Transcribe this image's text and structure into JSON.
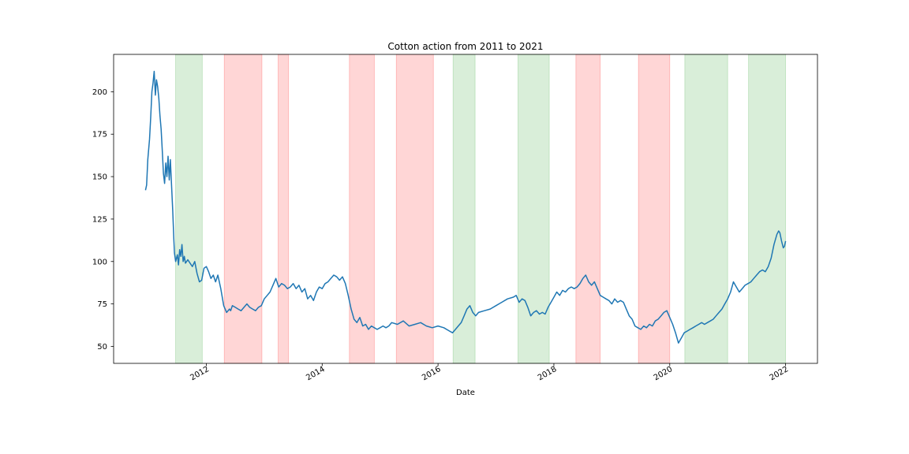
{
  "chart_data": {
    "type": "line",
    "title": "Cotton action from 2011 to 2021",
    "xlabel": "Date",
    "ylabel": "",
    "xlim": [
      2010.4,
      2022.55
    ],
    "ylim": [
      40,
      222
    ],
    "x_ticks": [
      {
        "value": 2012,
        "label": "2012"
      },
      {
        "value": 2014,
        "label": "2014"
      },
      {
        "value": 2016,
        "label": "2016"
      },
      {
        "value": 2018,
        "label": "2018"
      },
      {
        "value": 2020,
        "label": "2020"
      },
      {
        "value": 2022,
        "label": "2022"
      }
    ],
    "y_ticks": [
      {
        "value": 50,
        "label": "50"
      },
      {
        "value": 75,
        "label": "75"
      },
      {
        "value": 100,
        "label": "100"
      },
      {
        "value": 125,
        "label": "125"
      },
      {
        "value": 150,
        "label": "150"
      },
      {
        "value": 175,
        "label": "175"
      },
      {
        "value": 200,
        "label": "200"
      }
    ],
    "colors": {
      "line": "#1f77b4",
      "green_band": "#2ca02c",
      "red_band": "#ff0000"
    },
    "bands": [
      {
        "start": 2011.47,
        "end": 2011.93,
        "color": "green"
      },
      {
        "start": 2012.31,
        "end": 2012.96,
        "color": "red"
      },
      {
        "start": 2013.24,
        "end": 2013.42,
        "color": "red"
      },
      {
        "start": 2014.47,
        "end": 2014.9,
        "color": "red"
      },
      {
        "start": 2015.28,
        "end": 2015.92,
        "color": "red"
      },
      {
        "start": 2016.26,
        "end": 2016.64,
        "color": "green"
      },
      {
        "start": 2017.38,
        "end": 2017.92,
        "color": "green"
      },
      {
        "start": 2018.38,
        "end": 2018.8,
        "color": "red"
      },
      {
        "start": 2019.46,
        "end": 2020.0,
        "color": "red"
      },
      {
        "start": 2020.26,
        "end": 2021.0,
        "color": "green"
      },
      {
        "start": 2021.36,
        "end": 2022.0,
        "color": "green"
      }
    ],
    "series": [
      {
        "x": [
          2010.95,
          2010.97,
          2010.99,
          2011.02,
          2011.04,
          2011.06,
          2011.08,
          2011.1,
          2011.12,
          2011.14,
          2011.16,
          2011.18,
          2011.2,
          2011.22,
          2011.24,
          2011.26,
          2011.28,
          2011.3,
          2011.32,
          2011.34,
          2011.36,
          2011.38,
          2011.4,
          2011.42,
          2011.44,
          2011.45,
          2011.47,
          2011.5,
          2011.52,
          2011.54,
          2011.56,
          2011.58,
          2011.6,
          2011.62,
          2011.64,
          2011.66,
          2011.68,
          2011.72,
          2011.76,
          2011.8,
          2011.84,
          2011.88,
          2011.92,
          2011.96,
          2012.0,
          2012.04,
          2012.08,
          2012.12,
          2012.16,
          2012.2,
          2012.25,
          2012.3,
          2012.35,
          2012.4,
          2012.42,
          2012.45,
          2012.5,
          2012.55,
          2012.6,
          2012.65,
          2012.7,
          2012.75,
          2012.8,
          2012.85,
          2012.9,
          2012.95,
          2013.0,
          2013.05,
          2013.1,
          2013.15,
          2013.2,
          2013.25,
          2013.3,
          2013.35,
          2013.4,
          2013.45,
          2013.5,
          2013.55,
          2013.6,
          2013.65,
          2013.7,
          2013.75,
          2013.8,
          2013.85,
          2013.9,
          2013.95,
          2014.0,
          2014.05,
          2014.1,
          2014.15,
          2014.2,
          2014.25,
          2014.3,
          2014.35,
          2014.4,
          2014.45,
          2014.5,
          2014.55,
          2014.6,
          2014.65,
          2014.7,
          2014.75,
          2014.8,
          2014.85,
          2014.9,
          2014.95,
          2015.0,
          2015.05,
          2015.1,
          2015.15,
          2015.2,
          2015.3,
          2015.4,
          2015.5,
          2015.6,
          2015.7,
          2015.8,
          2015.9,
          2016.0,
          2016.1,
          2016.2,
          2016.25,
          2016.3,
          2016.35,
          2016.4,
          2016.45,
          2016.5,
          2016.55,
          2016.6,
          2016.65,
          2016.7,
          2016.8,
          2016.9,
          2017.0,
          2017.1,
          2017.2,
          2017.3,
          2017.35,
          2017.4,
          2017.45,
          2017.5,
          2017.55,
          2017.6,
          2017.65,
          2017.7,
          2017.75,
          2017.8,
          2017.85,
          2017.9,
          2017.95,
          2018.0,
          2018.05,
          2018.1,
          2018.15,
          2018.2,
          2018.25,
          2018.3,
          2018.35,
          2018.4,
          2018.45,
          2018.5,
          2018.55,
          2018.6,
          2018.65,
          2018.7,
          2018.75,
          2018.8,
          2018.85,
          2018.9,
          2018.95,
          2019.0,
          2019.05,
          2019.1,
          2019.15,
          2019.2,
          2019.25,
          2019.3,
          2019.35,
          2019.4,
          2019.45,
          2019.5,
          2019.55,
          2019.6,
          2019.65,
          2019.7,
          2019.75,
          2019.8,
          2019.85,
          2019.9,
          2019.95,
          2020.0,
          2020.05,
          2020.1,
          2020.15,
          2020.2,
          2020.25,
          2020.3,
          2020.35,
          2020.4,
          2020.45,
          2020.5,
          2020.55,
          2020.6,
          2020.65,
          2020.7,
          2020.75,
          2020.8,
          2020.85,
          2020.9,
          2020.95,
          2021.0,
          2021.05,
          2021.1,
          2021.15,
          2021.2,
          2021.25,
          2021.3,
          2021.35,
          2021.4,
          2021.45,
          2021.5,
          2021.55,
          2021.6,
          2021.65,
          2021.7,
          2021.75,
          2021.8,
          2021.85,
          2021.88,
          2021.9,
          2021.93,
          2021.96,
          2021.98,
          2022.0
        ],
        "y": [
          142,
          145,
          160,
          172,
          185,
          200,
          205,
          212,
          198,
          207,
          203,
          196,
          186,
          178,
          165,
          152,
          146,
          158,
          150,
          162,
          148,
          160,
          145,
          130,
          112,
          105,
          100,
          104,
          98,
          107,
          103,
          110,
          100,
          103,
          99,
          100,
          101,
          99,
          97,
          100,
          93,
          88,
          89,
          96,
          97,
          94,
          90,
          92,
          88,
          92,
          84,
          74,
          70,
          72,
          71,
          74,
          73,
          72,
          71,
          73,
          75,
          73,
          72,
          71,
          73,
          74,
          78,
          80,
          82,
          86,
          90,
          85,
          87,
          86,
          84,
          85,
          87,
          84,
          86,
          82,
          84,
          78,
          80,
          77,
          82,
          85,
          84,
          87,
          88,
          90,
          92,
          91,
          89,
          91,
          87,
          80,
          72,
          66,
          64,
          67,
          62,
          63,
          60,
          62,
          61,
          60,
          61,
          62,
          61,
          62,
          64,
          63,
          65,
          62,
          63,
          64,
          62,
          61,
          62,
          61,
          59,
          58,
          60,
          62,
          64,
          68,
          72,
          74,
          70,
          68,
          70,
          71,
          72,
          74,
          76,
          78,
          79,
          80,
          76,
          78,
          77,
          73,
          68,
          70,
          71,
          69,
          70,
          69,
          73,
          76,
          79,
          82,
          80,
          83,
          82,
          84,
          85,
          84,
          85,
          87,
          90,
          92,
          88,
          86,
          88,
          84,
          80,
          79,
          78,
          77,
          75,
          78,
          76,
          77,
          76,
          72,
          68,
          66,
          62,
          61,
          60,
          62,
          61,
          63,
          62,
          65,
          66,
          68,
          70,
          71,
          67,
          63,
          58,
          52,
          55,
          58,
          59,
          60,
          61,
          62,
          63,
          64,
          63,
          64,
          65,
          66,
          68,
          70,
          72,
          75,
          78,
          82,
          88,
          85,
          82,
          84,
          86,
          87,
          88,
          90,
          92,
          94,
          95,
          94,
          97,
          102,
          110,
          116,
          118,
          117,
          112,
          108,
          109,
          112
        ]
      }
    ]
  }
}
